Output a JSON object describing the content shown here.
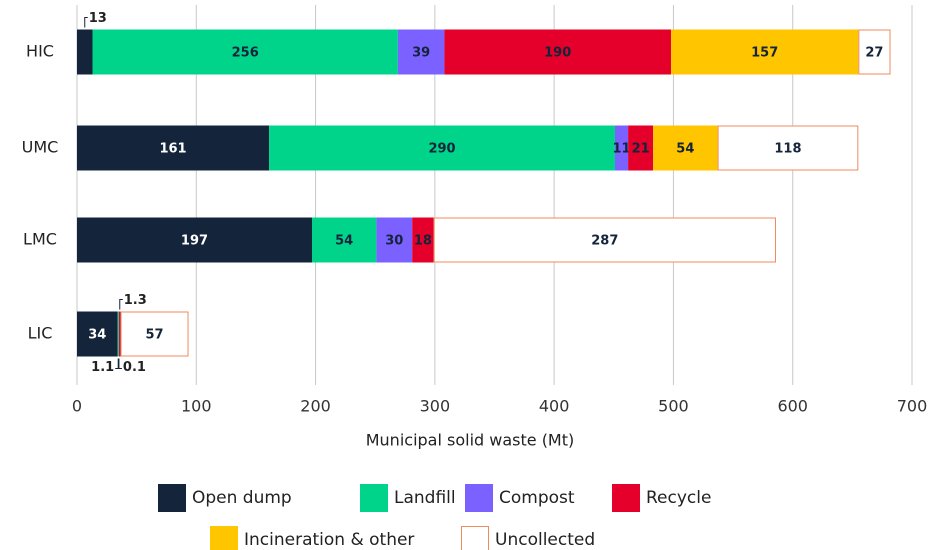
{
  "chart_data": {
    "type": "stacked_barh",
    "x_label": "Municipal solid waste (Mt)",
    "categories": [
      "HIC",
      "UMC",
      "LMC",
      "LIC"
    ],
    "series": [
      {
        "name": "Open dump",
        "color": "#14243a",
        "values": [
          13,
          161,
          197,
          34
        ]
      },
      {
        "name": "Landfill",
        "color": "#00d48a",
        "values": [
          256,
          290,
          54,
          1.1
        ]
      },
      {
        "name": "Compost",
        "color": "#7b61ff",
        "values": [
          39,
          11,
          30,
          0.1
        ]
      },
      {
        "name": "Recycle",
        "color": "#e4002b",
        "values": [
          190,
          21,
          18,
          1.3
        ]
      },
      {
        "name": "Incineration & other",
        "color": "#ffc600",
        "values": [
          157,
          54,
          null,
          null
        ]
      },
      {
        "name": "Uncollected",
        "color": "#f08a5d",
        "outline": true,
        "values": [
          27,
          118,
          287,
          57
        ]
      }
    ],
    "xlim": [
      0,
      700
    ],
    "xticks": [
      0,
      100,
      200,
      300,
      400,
      500,
      600,
      700
    ],
    "grid": true
  }
}
